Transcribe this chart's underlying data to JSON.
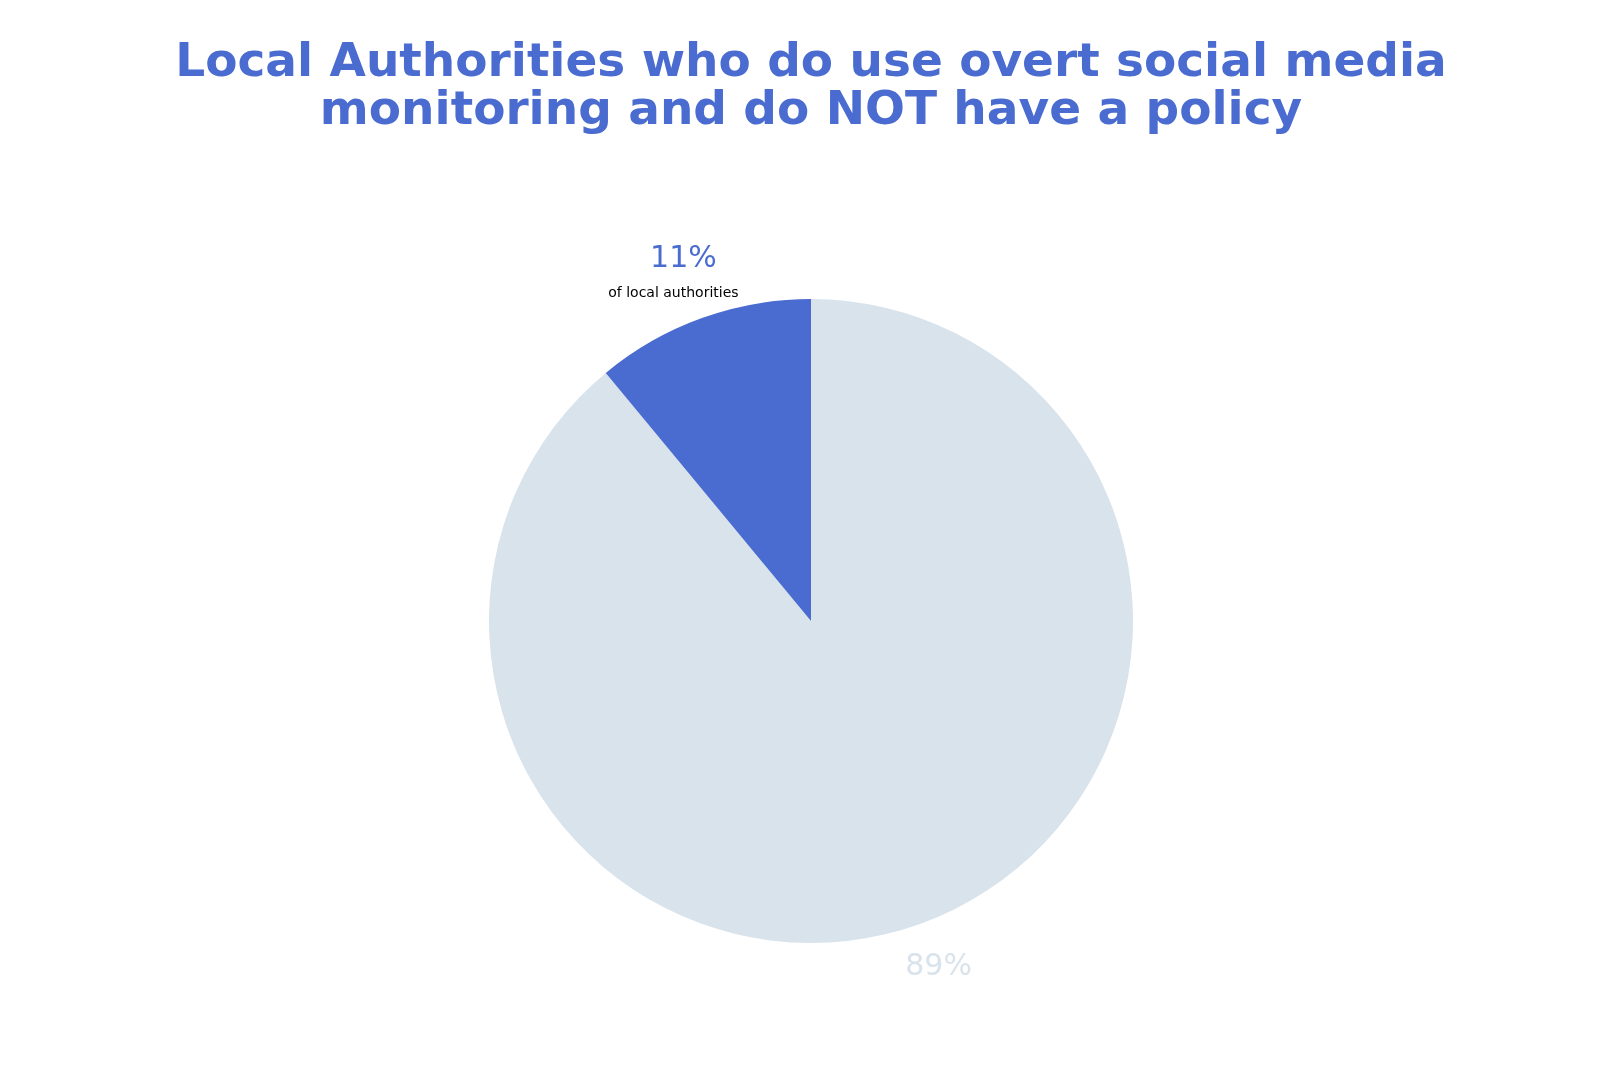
{
  "chart_data": {
    "type": "pie",
    "title": "Local Authorities who do use overt social media monitoring and do NOT have a policy",
    "categories": [
      null,
      null
    ],
    "values": [
      89,
      11
    ],
    "colors": [
      "#d9e3ec",
      "#4a6bcf"
    ],
    "value_labels": [
      "89%",
      "11%"
    ],
    "annotations": [
      "of local authorities"
    ]
  }
}
